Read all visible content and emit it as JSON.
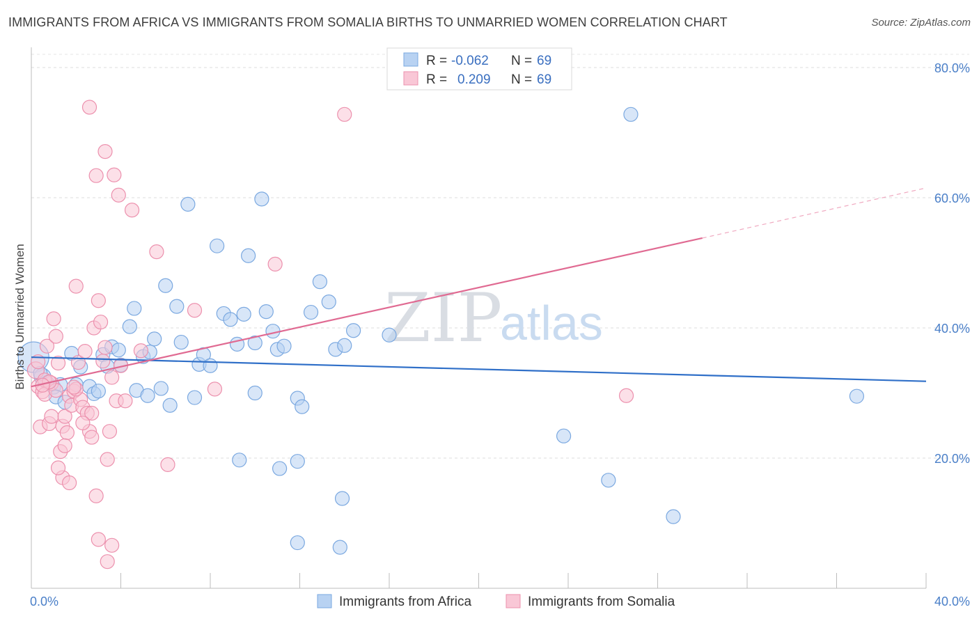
{
  "title": "IMMIGRANTS FROM AFRICA VS IMMIGRANTS FROM SOMALIA BIRTHS TO UNMARRIED WOMEN CORRELATION CHART",
  "source": "Source: ZipAtlas.com",
  "watermark": {
    "zip": "ZIP",
    "atlas": "atlas"
  },
  "legend_top": {
    "rows": [
      {
        "r_label": "R =",
        "r_value": "-0.062",
        "n_label": "N =",
        "n_value": "69",
        "color": "#a9c8f0"
      },
      {
        "r_label": "R =",
        "r_value": "0.209",
        "n_label": "N =",
        "n_value": "69",
        "color": "#f7b8ca"
      }
    ]
  },
  "chart_data": {
    "type": "scatter",
    "xlabel": "",
    "ylabel": "Births to Unmarried Women",
    "xlim": [
      0,
      40
    ],
    "ylim": [
      0,
      80
    ],
    "x_tick_labels": [
      "0.0%",
      "40.0%"
    ],
    "y_ticks": [
      20,
      40,
      60,
      80
    ],
    "y_tick_labels": [
      "20.0%",
      "40.0%",
      "60.0%",
      "80.0%"
    ],
    "grid": true,
    "legend_placement": "bottom",
    "series": [
      {
        "name": "Immigrants from Africa",
        "color": "#7aa8e0",
        "fill": "#b8d2f2",
        "trend": {
          "x0": 0,
          "y0": 35.5,
          "x1": 40,
          "y1": 31.8
        },
        "points": [
          [
            0.1,
            35.5,
            22
          ],
          [
            0.5,
            32.5,
            12
          ],
          [
            0.7,
            31.6,
            10
          ],
          [
            1.0,
            30.9,
            10
          ],
          [
            1.3,
            31.3,
            10
          ],
          [
            1.1,
            29.4,
            10
          ],
          [
            1.8,
            36.1,
            10
          ],
          [
            2.0,
            31.3,
            10
          ],
          [
            2.6,
            31.0,
            10
          ],
          [
            2.8,
            29.9,
            10
          ],
          [
            3.2,
            35.9,
            10
          ],
          [
            3.4,
            34.1,
            10
          ],
          [
            3.6,
            37.1,
            10
          ],
          [
            3.9,
            36.6,
            10
          ],
          [
            4.4,
            40.2,
            10
          ],
          [
            4.6,
            43.0,
            10
          ],
          [
            4.7,
            30.4,
            10
          ],
          [
            5.0,
            35.6,
            10
          ],
          [
            5.2,
            29.6,
            10
          ],
          [
            5.3,
            36.3,
            10
          ],
          [
            5.5,
            38.3,
            10
          ],
          [
            5.8,
            30.7,
            10
          ],
          [
            6.0,
            46.5,
            10
          ],
          [
            6.2,
            28.1,
            10
          ],
          [
            6.5,
            43.3,
            10
          ],
          [
            6.7,
            37.8,
            10
          ],
          [
            7.0,
            59.0,
            10
          ],
          [
            7.3,
            29.3,
            10
          ],
          [
            7.5,
            34.4,
            10
          ],
          [
            7.7,
            35.9,
            10
          ],
          [
            8.0,
            34.2,
            10
          ],
          [
            8.3,
            52.6,
            10
          ],
          [
            8.6,
            42.2,
            10
          ],
          [
            8.9,
            41.3,
            10
          ],
          [
            9.2,
            37.5,
            10
          ],
          [
            9.5,
            42.1,
            10
          ],
          [
            9.7,
            51.1,
            10
          ],
          [
            10.0,
            37.7,
            10
          ],
          [
            10.3,
            59.8,
            10
          ],
          [
            10.5,
            42.5,
            10
          ],
          [
            10.8,
            39.5,
            10
          ],
          [
            11.0,
            36.7,
            10
          ],
          [
            11.3,
            37.2,
            10
          ],
          [
            11.9,
            29.2,
            10
          ],
          [
            12.1,
            27.9,
            10
          ],
          [
            12.5,
            42.4,
            10
          ],
          [
            12.9,
            47.1,
            10
          ],
          [
            13.3,
            44.0,
            10
          ],
          [
            13.6,
            36.7,
            10
          ],
          [
            14.0,
            37.3,
            10
          ],
          [
            14.4,
            39.6,
            10
          ],
          [
            16.0,
            38.9,
            10
          ],
          [
            11.9,
            19.5,
            10
          ],
          [
            13.9,
            13.8,
            10
          ],
          [
            13.8,
            6.3,
            10
          ],
          [
            11.1,
            18.4,
            10
          ],
          [
            11.9,
            7.0,
            10
          ],
          [
            9.3,
            19.7,
            10
          ],
          [
            10.0,
            30.0,
            10
          ],
          [
            23.8,
            23.4,
            10
          ],
          [
            25.8,
            16.6,
            10
          ],
          [
            28.7,
            11.0,
            10
          ],
          [
            26.8,
            72.8,
            10
          ],
          [
            36.9,
            29.5,
            10
          ],
          [
            1.5,
            28.6,
            10
          ],
          [
            2.2,
            34.0,
            10
          ],
          [
            3.0,
            30.3,
            10
          ],
          [
            4.0,
            34.3,
            10
          ],
          [
            0.4,
            33.0,
            10
          ]
        ]
      },
      {
        "name": "Immigrants from Somalia",
        "color": "#ec90ad",
        "fill": "#f9c7d6",
        "trend": {
          "x0": 0,
          "y0": 31.0,
          "x1": 30,
          "y1": 53.8
        },
        "trend_dashed": {
          "x0": 30,
          "y0": 53.8,
          "x1": 40,
          "y1": 61.5
        },
        "points": [
          [
            0.2,
            33.5,
            12
          ],
          [
            0.3,
            31.0,
            10
          ],
          [
            0.4,
            24.8,
            10
          ],
          [
            0.5,
            30.2,
            10
          ],
          [
            0.6,
            29.8,
            10
          ],
          [
            0.7,
            37.2,
            10
          ],
          [
            0.8,
            25.3,
            10
          ],
          [
            0.9,
            26.4,
            10
          ],
          [
            1.0,
            41.4,
            10
          ],
          [
            1.1,
            38.7,
            10
          ],
          [
            1.2,
            34.6,
            10
          ],
          [
            1.3,
            21.0,
            10
          ],
          [
            1.4,
            24.9,
            10
          ],
          [
            1.5,
            26.4,
            10
          ],
          [
            1.6,
            23.9,
            10
          ],
          [
            1.7,
            29.5,
            10
          ],
          [
            1.8,
            28.1,
            10
          ],
          [
            1.9,
            30.3,
            10
          ],
          [
            2.0,
            46.4,
            10
          ],
          [
            2.1,
            34.7,
            10
          ],
          [
            2.2,
            29.0,
            10
          ],
          [
            2.3,
            27.8,
            10
          ],
          [
            2.4,
            36.4,
            10
          ],
          [
            2.5,
            26.9,
            10
          ],
          [
            2.6,
            24.1,
            10
          ],
          [
            2.7,
            23.2,
            10
          ],
          [
            2.8,
            40.0,
            10
          ],
          [
            2.9,
            14.2,
            10
          ],
          [
            3.0,
            44.2,
            10
          ],
          [
            3.1,
            40.9,
            10
          ],
          [
            3.2,
            34.9,
            10
          ],
          [
            3.3,
            37.0,
            10
          ],
          [
            3.4,
            19.8,
            10
          ],
          [
            3.5,
            24.1,
            10
          ],
          [
            3.6,
            6.6,
            10
          ],
          [
            3.7,
            63.5,
            10
          ],
          [
            3.8,
            28.8,
            10
          ],
          [
            3.9,
            60.4,
            10
          ],
          [
            4.0,
            34.2,
            10
          ],
          [
            4.2,
            28.8,
            10
          ],
          [
            4.5,
            58.1,
            10
          ],
          [
            4.9,
            36.5,
            10
          ],
          [
            5.6,
            51.7,
            10
          ],
          [
            6.1,
            19.0,
            10
          ],
          [
            7.3,
            42.7,
            10
          ],
          [
            8.2,
            30.6,
            10
          ],
          [
            10.9,
            49.8,
            10
          ],
          [
            14.0,
            72.8,
            10
          ],
          [
            2.6,
            73.9,
            10
          ],
          [
            3.3,
            67.1,
            10
          ],
          [
            2.9,
            63.4,
            10
          ],
          [
            3.4,
            4.1,
            10
          ],
          [
            3.0,
            7.5,
            10
          ],
          [
            1.4,
            17.0,
            10
          ],
          [
            1.7,
            16.2,
            10
          ],
          [
            1.2,
            18.5,
            10
          ],
          [
            1.5,
            21.9,
            10
          ],
          [
            2.0,
            30.6,
            10
          ],
          [
            2.7,
            26.9,
            10
          ],
          [
            0.9,
            31.5,
            10
          ],
          [
            0.6,
            32.0,
            10
          ],
          [
            0.3,
            34.8,
            10
          ],
          [
            1.1,
            30.4,
            10
          ],
          [
            0.8,
            31.7,
            10
          ],
          [
            26.6,
            29.6,
            10
          ],
          [
            2.3,
            25.4,
            10
          ],
          [
            3.6,
            32.4,
            10
          ],
          [
            1.9,
            30.9,
            10
          ],
          [
            0.5,
            31.2,
            10
          ]
        ]
      }
    ]
  }
}
